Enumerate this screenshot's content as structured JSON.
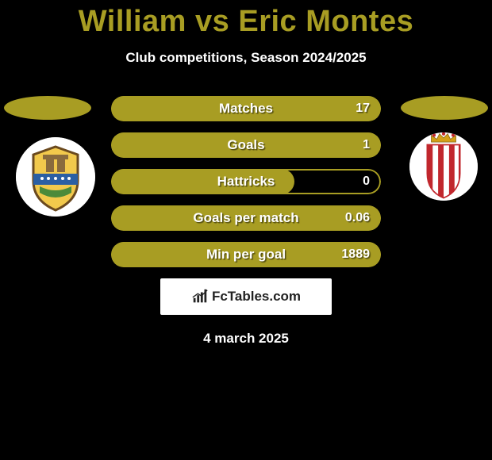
{
  "title": {
    "player1": "William",
    "vs": "vs",
    "player2": "Eric Montes",
    "color": "#a89d23",
    "fontsize": 38
  },
  "subtitle": "Club competitions, Season 2024/2025",
  "accent_color": "#a89d23",
  "bar_bg_color": "#000000",
  "ellipse_color": "#a89d23",
  "stats": [
    {
      "label": "Matches",
      "value": "17",
      "fill_pct": 100
    },
    {
      "label": "Goals",
      "value": "1",
      "fill_pct": 100
    },
    {
      "label": "Hattricks",
      "value": "0",
      "fill_pct": 68
    },
    {
      "label": "Goals per match",
      "value": "0.06",
      "fill_pct": 100
    },
    {
      "label": "Min per goal",
      "value": "1889",
      "fill_pct": 100
    }
  ],
  "brand": "FcTables.com",
  "date": "4 march 2025",
  "crest_left": {
    "bg": "#ffffff",
    "shield_fill": "#f2c94c",
    "shield_border": "#6b4a1f",
    "band_color": "#2b5fa3",
    "tower_color": "#8a6b3d",
    "grass_color": "#4b8a3a"
  },
  "crest_right": {
    "bg": "#ffffff",
    "stripe_colors": [
      "#c1272d",
      "#ffffff"
    ],
    "crown_color": "#d4a017"
  }
}
